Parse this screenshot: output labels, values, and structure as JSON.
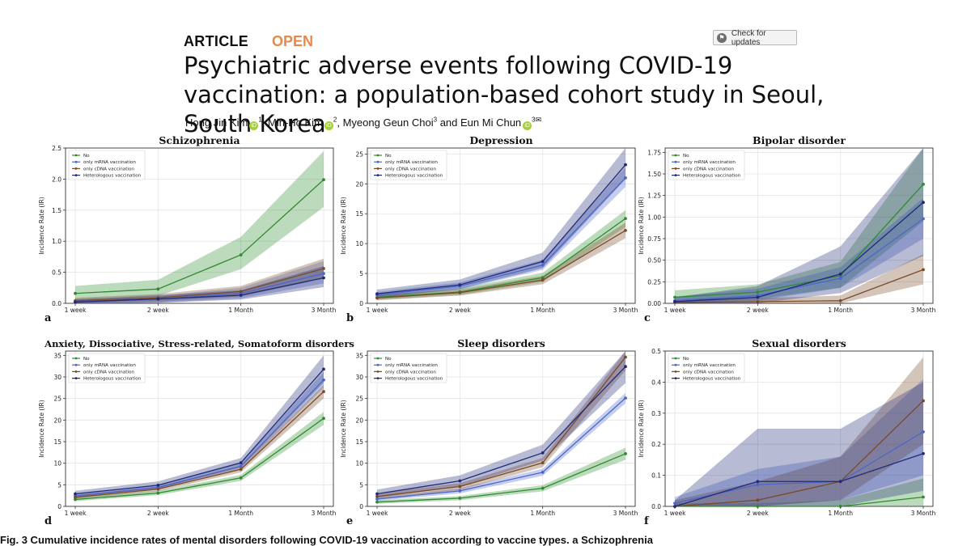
{
  "header": {
    "article_label": "ARTICLE",
    "open_label": "OPEN",
    "check_updates": "Check for updates",
    "title": "Psychiatric adverse events following COVID-19 vaccination: a population-based cohort study in Seoul, South Korea",
    "authors": [
      {
        "name": "Hong Jin Kim",
        "sup": "1",
        "orcid": true
      },
      {
        "name": "Min-Ho Kim",
        "sup": "2",
        "orcid": true
      },
      {
        "name": "Myeong Geun Choi",
        "sup": "3",
        "orcid": false
      },
      {
        "name": "Eun Mi Chun",
        "sup": "3",
        "orcid": true
      }
    ],
    "authors_and": "and"
  },
  "caption": "Fig. 3 Cumulative incidence rates of mental disorders following COVID-19 vaccination according to vaccine types. a Schizophrenia",
  "chart_data": [
    {
      "panel": "a",
      "type": "line",
      "title": "Schizophrenia",
      "ylabel": "Incidence Rate (IR)",
      "categories": [
        "1 week",
        "2 week",
        "1 Month",
        "3 Month"
      ],
      "ylim": [
        0,
        2.5
      ],
      "yticks": [
        0.0,
        0.5,
        1.0,
        1.5,
        2.0,
        2.5
      ],
      "tick_decimals": 1,
      "series": [
        {
          "name": "No",
          "color": "#2e8b2e",
          "values": [
            0.16,
            0.23,
            0.78,
            1.99
          ],
          "lower": [
            0.05,
            0.12,
            0.55,
            1.55
          ],
          "upper": [
            0.28,
            0.38,
            1.07,
            2.45
          ]
        },
        {
          "name": "only mRNA vaccination",
          "color": "#4c66c9",
          "values": [
            0.03,
            0.07,
            0.16,
            0.48
          ],
          "lower": [
            0.0,
            0.01,
            0.08,
            0.32
          ],
          "upper": [
            0.07,
            0.12,
            0.25,
            0.68
          ]
        },
        {
          "name": "only cDNA vaccination",
          "color": "#7a4a28",
          "values": [
            0.04,
            0.09,
            0.19,
            0.56
          ],
          "lower": [
            0.0,
            0.03,
            0.11,
            0.4
          ],
          "upper": [
            0.09,
            0.15,
            0.28,
            0.72
          ]
        },
        {
          "name": "Heterologous vaccination",
          "color": "#222a78",
          "values": [
            0.02,
            0.07,
            0.13,
            0.41
          ],
          "lower": [
            0.0,
            0.01,
            0.06,
            0.26
          ],
          "upper": [
            0.06,
            0.13,
            0.21,
            0.6
          ]
        }
      ]
    },
    {
      "panel": "b",
      "type": "line",
      "title": "Depression",
      "ylabel": "Incidence Rate (IR)",
      "categories": [
        "1 week",
        "2 week",
        "1 Month",
        "3 Month"
      ],
      "ylim": [
        0,
        26
      ],
      "yticks": [
        0,
        5,
        10,
        15,
        20,
        25
      ],
      "tick_decimals": 0,
      "series": [
        {
          "name": "No",
          "color": "#2e8b2e",
          "values": [
            1.0,
            1.9,
            4.3,
            14.2
          ],
          "lower": [
            0.6,
            1.4,
            3.6,
            12.8
          ],
          "upper": [
            1.4,
            2.5,
            5.1,
            15.6
          ]
        },
        {
          "name": "only mRNA vaccination",
          "color": "#4c66c9",
          "values": [
            1.4,
            2.9,
            6.4,
            21.0
          ],
          "lower": [
            1.0,
            2.3,
            5.6,
            19.5
          ],
          "upper": [
            1.9,
            3.5,
            7.3,
            22.8
          ]
        },
        {
          "name": "only cDNA vaccination",
          "color": "#7a4a28",
          "values": [
            0.9,
            1.8,
            3.9,
            12.2
          ],
          "lower": [
            0.5,
            1.3,
            3.2,
            10.9
          ],
          "upper": [
            1.3,
            2.3,
            4.6,
            13.5
          ]
        },
        {
          "name": "Heterologous vaccination",
          "color": "#222a78",
          "values": [
            1.6,
            3.1,
            7.0,
            23.2
          ],
          "lower": [
            1.0,
            2.4,
            5.9,
            20.8
          ],
          "upper": [
            2.3,
            4.0,
            8.5,
            26.0
          ]
        }
      ]
    },
    {
      "panel": "c",
      "type": "line",
      "title": "Bipolar disorder",
      "ylabel": "Incidence Rate (IR)",
      "categories": [
        "1 week",
        "2 week",
        "1 Month",
        "3 Month"
      ],
      "ylim": [
        0,
        1.8
      ],
      "yticks": [
        0.0,
        0.25,
        0.5,
        0.75,
        1.0,
        1.25,
        1.5,
        1.75
      ],
      "tick_decimals": 2,
      "series": [
        {
          "name": "No",
          "color": "#2e8b2e",
          "values": [
            0.07,
            0.13,
            0.32,
            1.38
          ],
          "lower": [
            0.0,
            0.05,
            0.18,
            0.95
          ],
          "upper": [
            0.15,
            0.22,
            0.48,
            1.8
          ]
        },
        {
          "name": "only mRNA vaccination",
          "color": "#4c66c9",
          "values": [
            0.03,
            0.09,
            0.29,
            0.98
          ],
          "lower": [
            0.0,
            0.03,
            0.18,
            0.75
          ],
          "upper": [
            0.08,
            0.17,
            0.42,
            1.22
          ]
        },
        {
          "name": "only cDNA vaccination",
          "color": "#7a4a28",
          "values": [
            0.01,
            0.02,
            0.03,
            0.39
          ],
          "lower": [
            0.0,
            0.0,
            0.0,
            0.22
          ],
          "upper": [
            0.04,
            0.06,
            0.09,
            0.57
          ]
        },
        {
          "name": "Heterologous vaccination",
          "color": "#222a78",
          "values": [
            0.02,
            0.07,
            0.34,
            1.17
          ],
          "lower": [
            0.0,
            0.0,
            0.12,
            0.55
          ],
          "upper": [
            0.07,
            0.2,
            0.66,
            1.8
          ]
        }
      ]
    },
    {
      "panel": "d",
      "type": "line",
      "title": "Anxiety, Dissociative, Stress-related, Somatoform disorders",
      "ylabel": "Incidence Rate (IR)",
      "categories": [
        "1 week",
        "2 week",
        "1 Month",
        "3 Month"
      ],
      "ylim": [
        0,
        36
      ],
      "yticks": [
        0,
        5,
        10,
        15,
        20,
        25,
        30,
        35
      ],
      "tick_decimals": 0,
      "series": [
        {
          "name": "No",
          "color": "#2e8b2e",
          "values": [
            1.6,
            3.1,
            6.6,
            20.4
          ],
          "lower": [
            1.2,
            2.6,
            5.9,
            18.9
          ],
          "upper": [
            2.1,
            3.6,
            7.3,
            21.9
          ]
        },
        {
          "name": "only mRNA vaccination",
          "color": "#4c66c9",
          "values": [
            2.4,
            4.4,
            9.3,
            29.3
          ],
          "lower": [
            2.0,
            3.9,
            8.6,
            27.5
          ],
          "upper": [
            2.9,
            5.0,
            10.1,
            31.2
          ]
        },
        {
          "name": "only cDNA vaccination",
          "color": "#7a4a28",
          "values": [
            2.1,
            4.0,
            8.6,
            26.6
          ],
          "lower": [
            1.7,
            3.5,
            7.9,
            25.0
          ],
          "upper": [
            2.6,
            4.5,
            9.4,
            28.2
          ]
        },
        {
          "name": "Heterologous vaccination",
          "color": "#222a78",
          "values": [
            2.9,
            4.9,
            10.1,
            31.8
          ],
          "lower": [
            2.3,
            4.1,
            9.1,
            28.6
          ],
          "upper": [
            3.6,
            5.8,
            11.2,
            35.0
          ]
        }
      ]
    },
    {
      "panel": "e",
      "type": "line",
      "title": "Sleep disorders",
      "ylabel": "Incidence Rate (IR)",
      "categories": [
        "1 week",
        "2 week",
        "1 Month",
        "3 Month"
      ],
      "ylim": [
        0,
        36
      ],
      "yticks": [
        0,
        5,
        10,
        15,
        20,
        25,
        30,
        35
      ],
      "tick_decimals": 0,
      "series": [
        {
          "name": "No",
          "color": "#2e8b2e",
          "values": [
            1.0,
            1.9,
            4.2,
            12.2
          ],
          "lower": [
            0.6,
            1.4,
            3.5,
            10.8
          ],
          "upper": [
            1.4,
            2.4,
            4.9,
            13.6
          ]
        },
        {
          "name": "only mRNA vaccination",
          "color": "#4c66c9",
          "values": [
            1.7,
            3.6,
            7.9,
            25.1
          ],
          "lower": [
            1.3,
            3.0,
            7.1,
            23.9
          ],
          "upper": [
            2.1,
            4.2,
            8.7,
            26.3
          ]
        },
        {
          "name": "only cDNA vaccination",
          "color": "#7a4a28",
          "values": [
            2.3,
            4.6,
            10.1,
            34.6
          ],
          "lower": [
            1.7,
            3.8,
            9.1,
            31.5
          ],
          "upper": [
            3.0,
            5.4,
            11.2,
            36.0
          ]
        },
        {
          "name": "Heterologous vaccination",
          "color": "#222a78",
          "values": [
            2.9,
            5.9,
            12.4,
            32.4
          ],
          "lower": [
            2.0,
            4.6,
            10.6,
            28.6
          ],
          "upper": [
            3.9,
            7.2,
            14.3,
            36.0
          ]
        }
      ]
    },
    {
      "panel": "f",
      "type": "line",
      "title": "Sexual disorders",
      "ylabel": "Incidence Rate (IR)",
      "categories": [
        "1 week",
        "2 week",
        "1 Month",
        "3 Month"
      ],
      "ylim": [
        0,
        0.5
      ],
      "yticks": [
        0.0,
        0.1,
        0.2,
        0.3,
        0.4,
        0.5
      ],
      "tick_decimals": 1,
      "series": [
        {
          "name": "No",
          "color": "#2e8b2e",
          "values": [
            0.0,
            0.0,
            0.0,
            0.03
          ],
          "lower": [
            0.0,
            0.0,
            0.0,
            0.0
          ],
          "upper": [
            0.01,
            0.01,
            0.02,
            0.09
          ]
        },
        {
          "name": "only mRNA vaccination",
          "color": "#4c66c9",
          "values": [
            0.01,
            0.07,
            0.08,
            0.24
          ],
          "lower": [
            0.0,
            0.0,
            0.02,
            0.1
          ],
          "upper": [
            0.03,
            0.12,
            0.16,
            0.41
          ]
        },
        {
          "name": "only cDNA vaccination",
          "color": "#7a4a28",
          "values": [
            0.0,
            0.02,
            0.08,
            0.34
          ],
          "lower": [
            0.0,
            0.0,
            0.02,
            0.2
          ],
          "upper": [
            0.02,
            0.08,
            0.16,
            0.48
          ]
        },
        {
          "name": "Heterologous vaccination",
          "color": "#222a78",
          "values": [
            0.0,
            0.08,
            0.08,
            0.17
          ],
          "lower": [
            0.0,
            0.0,
            0.0,
            0.05
          ],
          "upper": [
            0.02,
            0.25,
            0.25,
            0.4
          ]
        }
      ]
    }
  ]
}
